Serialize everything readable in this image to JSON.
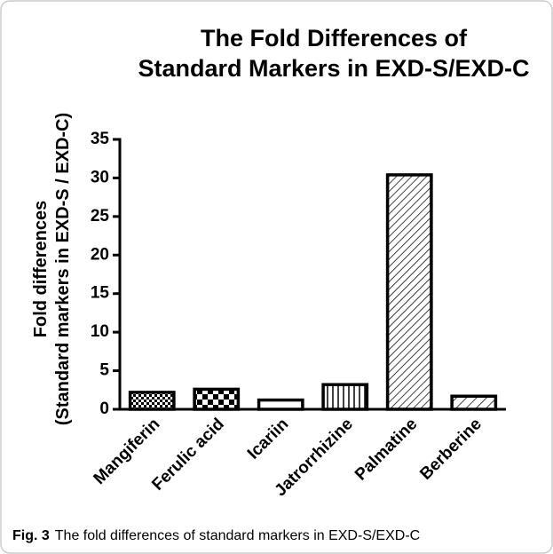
{
  "chart_data": {
    "type": "bar",
    "title": [
      "The Fold Differences of",
      "Standard Markers in EXD-S/EXD-C"
    ],
    "ylabel": [
      "Fold differences",
      "(Standard markers in EXD-S / EXD-C)"
    ],
    "categories": [
      "Mangiferin",
      "Ferulic acid",
      "Icariin",
      "Jatrorrhizine",
      "Palmatine",
      "Berberine"
    ],
    "values": [
      2.2,
      2.6,
      1.2,
      3.2,
      30.4,
      1.7
    ],
    "color": "#000000",
    "ylim": [
      0,
      35
    ],
    "yticks": [
      0,
      5,
      10,
      15,
      20,
      25,
      30,
      35
    ],
    "grid": false
  },
  "caption": {
    "label": "Fig. 3",
    "text": "The fold differences of standard markers in EXD-S/EXD-C"
  }
}
